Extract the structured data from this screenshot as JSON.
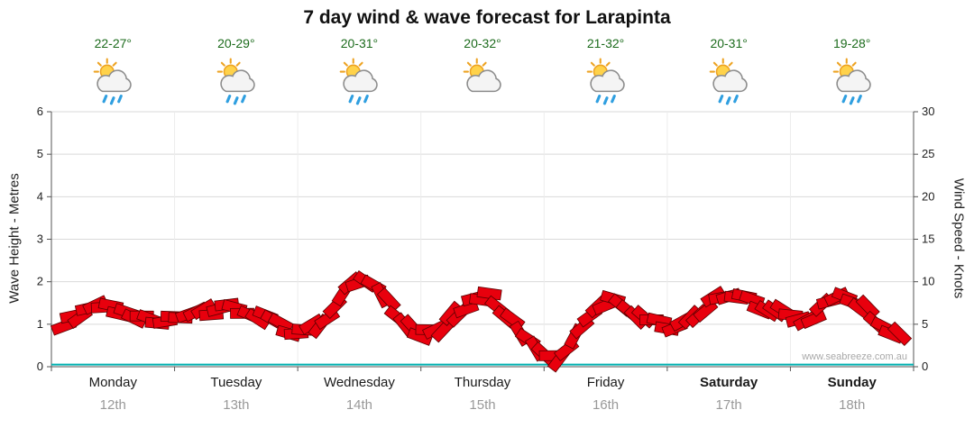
{
  "title": "7 day wind & wave forecast for Larapinta",
  "watermark": "www.seabreeze.com.au",
  "days": [
    {
      "name": "Monday",
      "date": "12th",
      "temp": "22-27°",
      "icon": "sun-cloud-rain",
      "bold": false
    },
    {
      "name": "Tuesday",
      "date": "13th",
      "temp": "20-29°",
      "icon": "sun-cloud-rain",
      "bold": false
    },
    {
      "name": "Wednesday",
      "date": "14th",
      "temp": "20-31°",
      "icon": "sun-cloud-rain",
      "bold": false
    },
    {
      "name": "Thursday",
      "date": "15th",
      "temp": "20-32°",
      "icon": "sun-cloud",
      "bold": false
    },
    {
      "name": "Friday",
      "date": "16th",
      "temp": "21-32°",
      "icon": "sun-cloud-rain",
      "bold": false
    },
    {
      "name": "Saturday",
      "date": "17th",
      "temp": "20-31°",
      "icon": "sun-cloud-rain",
      "bold": true
    },
    {
      "name": "Sunday",
      "date": "18th",
      "temp": "19-28°",
      "icon": "sun-cloud-rain",
      "bold": true
    }
  ],
  "chart_data": {
    "type": "line",
    "title": "7 day wind & wave forecast for Larapinta",
    "x_categories": [
      "Monday 12th",
      "Tuesday 13th",
      "Wednesday 14th",
      "Thursday 15th",
      "Friday 16th",
      "Saturday 17th",
      "Sunday 18th"
    ],
    "y_left": {
      "label": "Wave Height - Metres",
      "min": 0,
      "max": 6,
      "ticks": [
        0,
        1,
        2,
        3,
        4,
        5,
        6
      ]
    },
    "y_right": {
      "label": "Wind Speed - Knots",
      "min": 0,
      "max": 30,
      "ticks": [
        0,
        5,
        10,
        15,
        20,
        25,
        30
      ]
    },
    "grid": true,
    "legend": "none",
    "series": [
      {
        "name": "Wind Speed (knots)",
        "axis": "right",
        "style": "red-barb-band",
        "points_per_day": 8,
        "values": [
          5.2,
          5.6,
          6.6,
          6.9,
          6.6,
          6.1,
          5.6,
          5.4,
          5.7,
          6.1,
          6.6,
          6.9,
          6.6,
          6.2,
          5.3,
          4.4,
          4.2,
          5.2,
          7.2,
          9.6,
          10.2,
          8.4,
          6.2,
          4.6,
          4.0,
          4.8,
          6.6,
          7.8,
          8.0,
          6.4,
          4.2,
          2.6,
          1.0,
          2.4,
          5.0,
          6.8,
          7.6,
          6.8,
          5.6,
          5.2,
          4.8,
          5.8,
          7.2,
          8.2,
          8.6,
          7.8,
          6.8,
          6.2,
          5.6,
          6.2,
          7.6,
          8.0,
          7.2,
          5.6,
          4.2,
          2.8
        ]
      },
      {
        "name": "Wave Height (metres)",
        "axis": "left",
        "style": "line",
        "points_per_day": 1,
        "values": [
          0.05,
          0.05,
          0.05,
          0.05,
          0.05,
          0.05,
          0.05
        ]
      }
    ]
  },
  "colors": {
    "accent_red": "#e8000d",
    "band_stroke": "#5a0000",
    "wave_teal": "#00b0b0",
    "temp_text": "#1c6b1c",
    "date_text": "#999999",
    "grid": "#d9d9d9",
    "day_grid": "#ececec",
    "axis": "#555555",
    "tick_text": "#222222",
    "watermark": "#a8a8a8",
    "icon": {
      "sun_fill": "#ffd24a",
      "sun_stroke": "#eda323",
      "cloud_fill": "#f4f4f4",
      "cloud_stroke": "#8c8c8c",
      "rain": "#2f9fe0"
    }
  }
}
